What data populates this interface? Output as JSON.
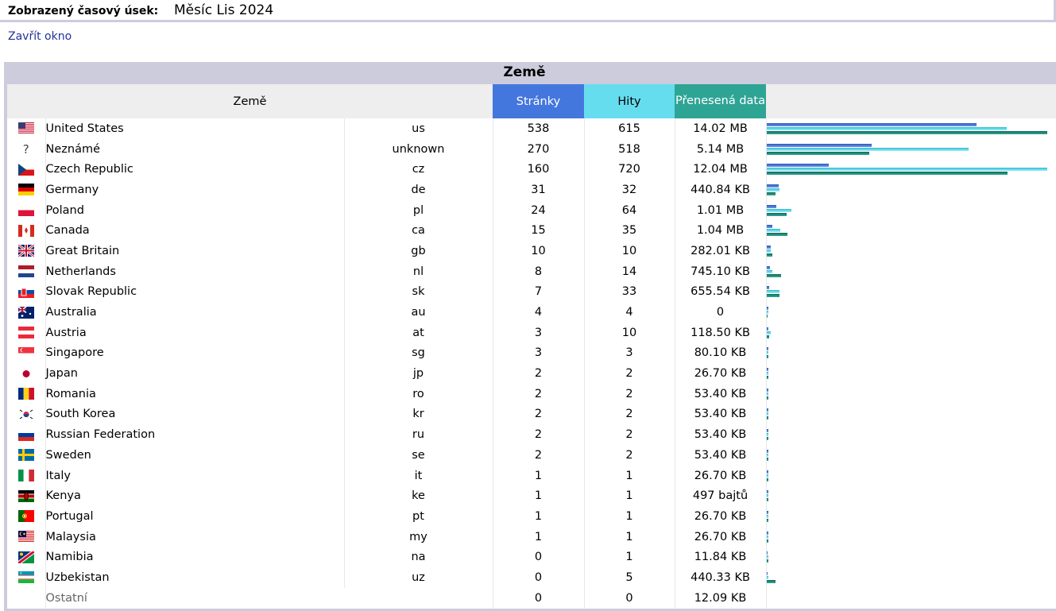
{
  "header": {
    "label": "Zobrazený časový úsek:",
    "value": "Měsíc Lis 2024"
  },
  "close_link": "Zavřít okno",
  "panel_title": "Země",
  "columns": {
    "country": "Země",
    "pages": "Stránky",
    "hits": "Hity",
    "bandwidth": "Přenesená data"
  },
  "colors": {
    "pages": "#4477dd",
    "hits": "#66ddee",
    "bandwidth": "#2ea495"
  },
  "max": {
    "pages": 538,
    "hits": 720,
    "bytes": 14701690
  },
  "rows": [
    {
      "flag": "us-flag-icon",
      "name": "United States",
      "code": "us",
      "pages": "538",
      "hits": "615",
      "bw": "14.02 MB",
      "p": 538,
      "h": 615,
      "b": 14701690
    },
    {
      "flag": "unknown-flag-icon",
      "name": "Neznámé",
      "code": "unknown",
      "pages": "270",
      "hits": "518",
      "bw": "5.14 MB",
      "p": 270,
      "h": 518,
      "b": 5389680
    },
    {
      "flag": "cz-flag-icon",
      "name": "Czech Republic",
      "code": "cz",
      "pages": "160",
      "hits": "720",
      "bw": "12.04 MB",
      "p": 160,
      "h": 720,
      "b": 12624855
    },
    {
      "flag": "de-flag-icon",
      "name": "Germany",
      "code": "de",
      "pages": "31",
      "hits": "32",
      "bw": "440.84 KB",
      "p": 31,
      "h": 32,
      "b": 451420
    },
    {
      "flag": "pl-flag-icon",
      "name": "Poland",
      "code": "pl",
      "pages": "24",
      "hits": "64",
      "bw": "1.01 MB",
      "p": 24,
      "h": 64,
      "b": 1059062
    },
    {
      "flag": "ca-flag-icon",
      "name": "Canada",
      "code": "ca",
      "pages": "15",
      "hits": "35",
      "bw": "1.04 MB",
      "p": 15,
      "h": 35,
      "b": 1090519
    },
    {
      "flag": "gb-flag-icon",
      "name": "Great Britain",
      "code": "gb",
      "pages": "10",
      "hits": "10",
      "bw": "282.01 KB",
      "p": 10,
      "h": 10,
      "b": 288778
    },
    {
      "flag": "nl-flag-icon",
      "name": "Netherlands",
      "code": "nl",
      "pages": "8",
      "hits": "14",
      "bw": "745.10 KB",
      "p": 8,
      "h": 14,
      "b": 762982
    },
    {
      "flag": "sk-flag-icon",
      "name": "Slovak Republic",
      "code": "sk",
      "pages": "7",
      "hits": "33",
      "bw": "655.54 KB",
      "p": 7,
      "h": 33,
      "b": 671273
    },
    {
      "flag": "au-flag-icon",
      "name": "Australia",
      "code": "au",
      "pages": "4",
      "hits": "4",
      "bw": "0",
      "p": 4,
      "h": 4,
      "b": 0
    },
    {
      "flag": "at-flag-icon",
      "name": "Austria",
      "code": "at",
      "pages": "3",
      "hits": "10",
      "bw": "118.50 KB",
      "p": 3,
      "h": 10,
      "b": 121344
    },
    {
      "flag": "sg-flag-icon",
      "name": "Singapore",
      "code": "sg",
      "pages": "3",
      "hits": "3",
      "bw": "80.10 KB",
      "p": 3,
      "h": 3,
      "b": 82022
    },
    {
      "flag": "jp-flag-icon",
      "name": "Japan",
      "code": "jp",
      "pages": "2",
      "hits": "2",
      "bw": "26.70 KB",
      "p": 2,
      "h": 2,
      "b": 27341
    },
    {
      "flag": "ro-flag-icon",
      "name": "Romania",
      "code": "ro",
      "pages": "2",
      "hits": "2",
      "bw": "53.40 KB",
      "p": 2,
      "h": 2,
      "b": 54682
    },
    {
      "flag": "kr-flag-icon",
      "name": "South Korea",
      "code": "kr",
      "pages": "2",
      "hits": "2",
      "bw": "53.40 KB",
      "p": 2,
      "h": 2,
      "b": 54682
    },
    {
      "flag": "ru-flag-icon",
      "name": "Russian Federation",
      "code": "ru",
      "pages": "2",
      "hits": "2",
      "bw": "53.40 KB",
      "p": 2,
      "h": 2,
      "b": 54682
    },
    {
      "flag": "se-flag-icon",
      "name": "Sweden",
      "code": "se",
      "pages": "2",
      "hits": "2",
      "bw": "53.40 KB",
      "p": 2,
      "h": 2,
      "b": 54682
    },
    {
      "flag": "it-flag-icon",
      "name": "Italy",
      "code": "it",
      "pages": "1",
      "hits": "1",
      "bw": "26.70 KB",
      "p": 1,
      "h": 1,
      "b": 27341
    },
    {
      "flag": "ke-flag-icon",
      "name": "Kenya",
      "code": "ke",
      "pages": "1",
      "hits": "1",
      "bw": "497 bajtů",
      "p": 1,
      "h": 1,
      "b": 497
    },
    {
      "flag": "pt-flag-icon",
      "name": "Portugal",
      "code": "pt",
      "pages": "1",
      "hits": "1",
      "bw": "26.70 KB",
      "p": 1,
      "h": 1,
      "b": 27341
    },
    {
      "flag": "my-flag-icon",
      "name": "Malaysia",
      "code": "my",
      "pages": "1",
      "hits": "1",
      "bw": "26.70 KB",
      "p": 1,
      "h": 1,
      "b": 27341
    },
    {
      "flag": "na-flag-icon",
      "name": "Namibia",
      "code": "na",
      "pages": "0",
      "hits": "1",
      "bw": "11.84 KB",
      "p": 0,
      "h": 1,
      "b": 12124
    },
    {
      "flag": "uz-flag-icon",
      "name": "Uzbekistan",
      "code": "uz",
      "pages": "0",
      "hits": "5",
      "bw": "440.33 KB",
      "p": 0,
      "h": 5,
      "b": 450898
    }
  ],
  "other": {
    "name": "Ostatní",
    "pages": "0",
    "hits": "0",
    "bw": "12.09 KB"
  }
}
